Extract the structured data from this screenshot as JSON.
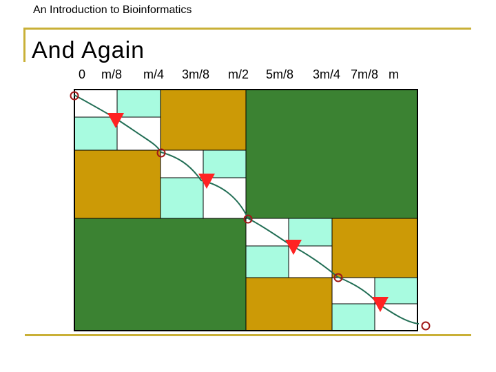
{
  "header": {
    "course_title": "An Introduction to Bioinformatics"
  },
  "slide": {
    "title": "And Again"
  },
  "axis": {
    "tick_labels": [
      "0",
      "m/8",
      "m/4",
      "3m/8",
      "m/2",
      "5m/8",
      "3m/4",
      "7m/8",
      "m"
    ]
  },
  "colors": {
    "accent_rule": "#c9b037",
    "dark_green": "#3b8232",
    "gold": "#cc9a06",
    "aqua": "#a8fbe0",
    "path": "#226e55",
    "heart": "#ff2222",
    "circle": "#a01818"
  }
}
